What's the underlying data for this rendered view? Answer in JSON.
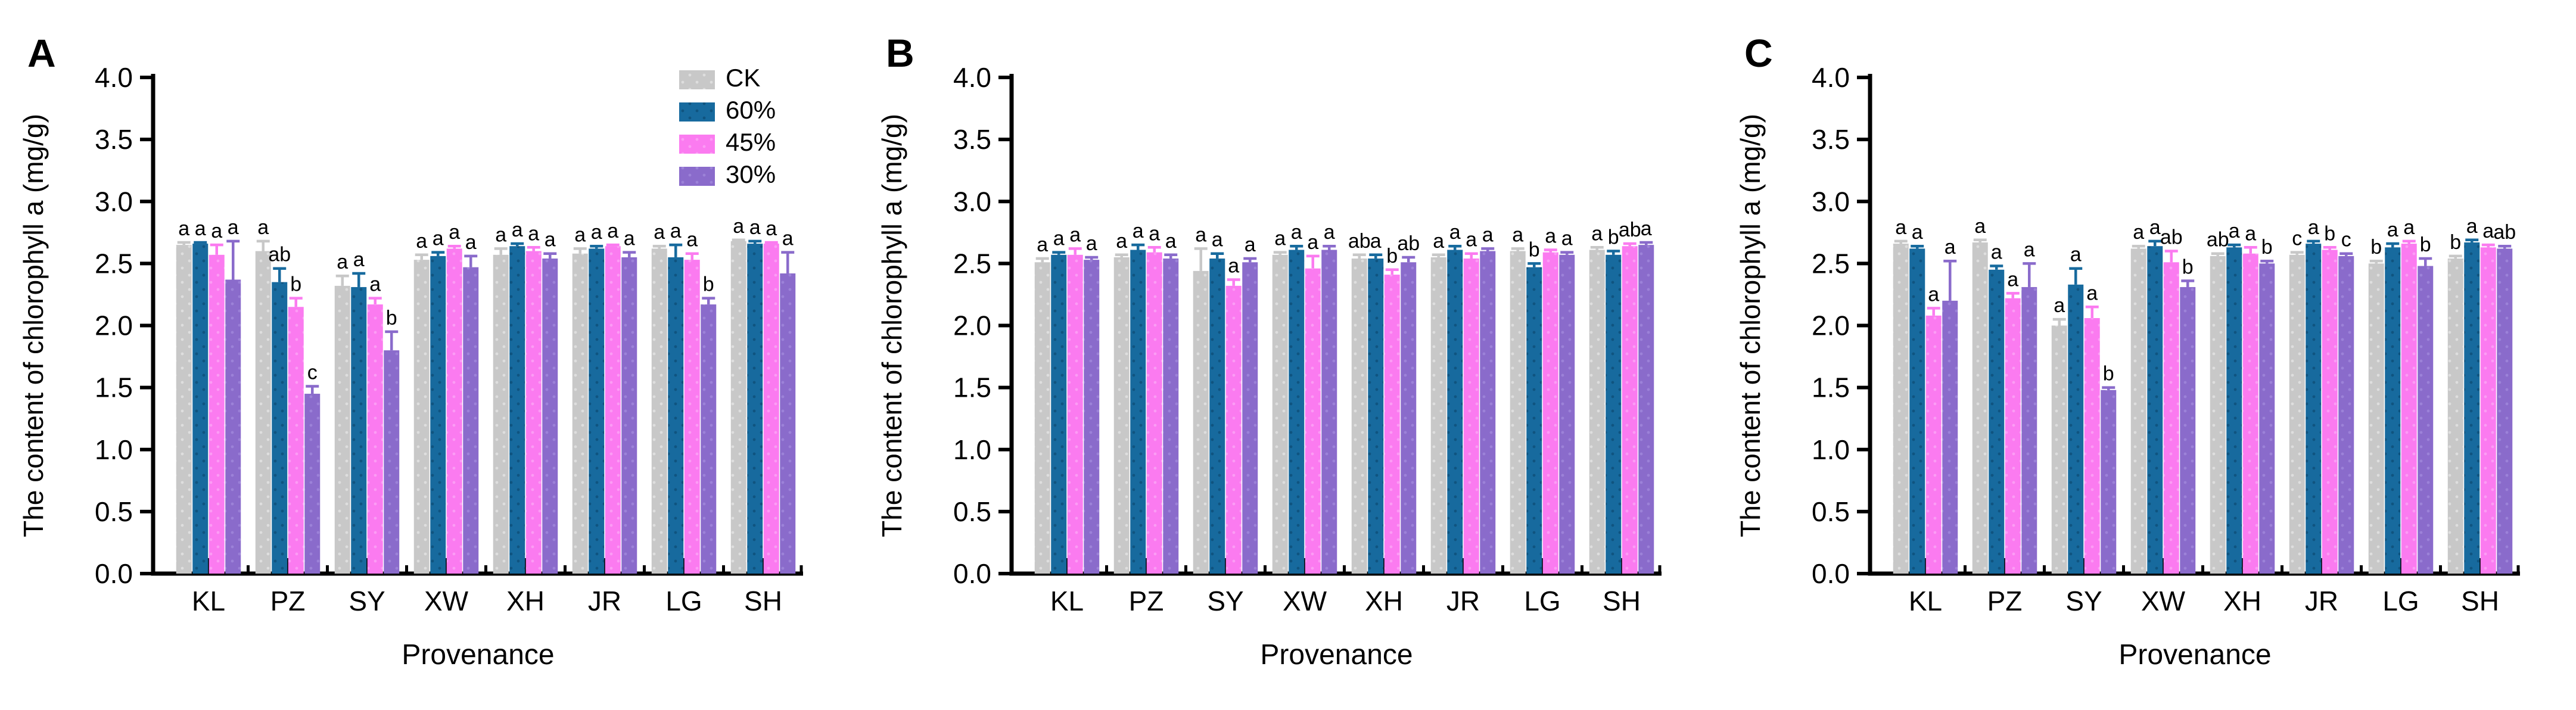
{
  "figure_title": "",
  "chart_data": [
    {
      "panel_label": "A",
      "type": "bar",
      "categories": [
        "KL",
        "PZ",
        "SY",
        "XW",
        "XH",
        "JR",
        "LG",
        "SH"
      ],
      "xlabel": "Provenance",
      "ylabel": "The content of chlorophyll a (mg/g)",
      "ylim": [
        0.0,
        4.0
      ],
      "yticks": [
        0.0,
        0.5,
        1.0,
        1.5,
        2.0,
        2.5,
        3.0,
        3.5,
        4.0
      ],
      "grid": false,
      "show_legend": true,
      "legend_position": "top-right",
      "series": [
        {
          "name": "CK",
          "color": "#c8c8c8",
          "dot_color": "#dedede",
          "values": [
            2.65,
            2.6,
            2.32,
            2.53,
            2.57,
            2.58,
            2.62,
            2.68
          ],
          "errors": [
            0.02,
            0.08,
            0.08,
            0.04,
            0.05,
            0.04,
            0.02,
            0.01
          ],
          "letters": [
            "a",
            "a",
            "a",
            "a",
            "a",
            "a",
            "a",
            "a"
          ]
        },
        {
          "name": "60%",
          "color": "#176a9e",
          "dot_color": "#0f5480",
          "values": [
            2.66,
            2.35,
            2.31,
            2.56,
            2.64,
            2.62,
            2.55,
            2.66
          ],
          "errors": [
            0.01,
            0.11,
            0.11,
            0.03,
            0.02,
            0.02,
            0.1,
            0.02
          ],
          "letters": [
            "a",
            "ab",
            "a",
            "a",
            "a",
            "a",
            "a",
            "a"
          ]
        },
        {
          "name": "45%",
          "color": "#fb7bf0",
          "dot_color": "#fc9cf5",
          "values": [
            2.57,
            2.15,
            2.17,
            2.62,
            2.6,
            2.64,
            2.53,
            2.66
          ],
          "errors": [
            0.08,
            0.07,
            0.05,
            0.02,
            0.03,
            0.01,
            0.05,
            0.01
          ],
          "letters": [
            "a",
            "b",
            "a",
            "a",
            "a",
            "a",
            "a",
            "a"
          ]
        },
        {
          "name": "30%",
          "color": "#8a6bcb",
          "dot_color": "#9c82d8",
          "values": [
            2.37,
            1.45,
            1.8,
            2.47,
            2.54,
            2.55,
            2.17,
            2.42
          ],
          "errors": [
            0.31,
            0.06,
            0.15,
            0.09,
            0.04,
            0.04,
            0.05,
            0.17
          ],
          "letters": [
            "a",
            "c",
            "b",
            "a",
            "a",
            "a",
            "b",
            "a"
          ]
        }
      ]
    },
    {
      "panel_label": "B",
      "type": "bar",
      "categories": [
        "KL",
        "PZ",
        "SY",
        "XW",
        "XH",
        "JR",
        "LG",
        "SH"
      ],
      "xlabel": "Provenance",
      "ylabel": "The content of chlorophyll a (mg/g)",
      "ylim": [
        0.0,
        4.0
      ],
      "yticks": [
        0.0,
        0.5,
        1.0,
        1.5,
        2.0,
        2.5,
        3.0,
        3.5,
        4.0
      ],
      "grid": false,
      "show_legend": false,
      "legend_position": "",
      "series": [
        {
          "name": "CK",
          "color": "#c8c8c8",
          "dot_color": "#dedede",
          "values": [
            2.51,
            2.55,
            2.44,
            2.57,
            2.54,
            2.55,
            2.6,
            2.61
          ],
          "errors": [
            0.03,
            0.02,
            0.18,
            0.02,
            0.03,
            0.02,
            0.02,
            0.02
          ],
          "letters": [
            "a",
            "a",
            "a",
            "a",
            "ab",
            "a",
            "a",
            "a"
          ]
        },
        {
          "name": "60%",
          "color": "#176a9e",
          "dot_color": "#0f5480",
          "values": [
            2.57,
            2.61,
            2.54,
            2.61,
            2.54,
            2.61,
            2.47,
            2.57
          ],
          "errors": [
            0.02,
            0.04,
            0.04,
            0.03,
            0.03,
            0.03,
            0.03,
            0.03
          ],
          "letters": [
            "a",
            "a",
            "a",
            "a",
            "a",
            "a",
            "b",
            "b"
          ]
        },
        {
          "name": "45%",
          "color": "#fb7bf0",
          "dot_color": "#fc9cf5",
          "values": [
            2.57,
            2.59,
            2.32,
            2.46,
            2.41,
            2.54,
            2.59,
            2.64
          ],
          "errors": [
            0.05,
            0.04,
            0.05,
            0.1,
            0.04,
            0.04,
            0.02,
            0.02
          ],
          "letters": [
            "a",
            "a",
            "a",
            "a",
            "b",
            "a",
            "a",
            "ab"
          ]
        },
        {
          "name": "30%",
          "color": "#8a6bcb",
          "dot_color": "#9c82d8",
          "values": [
            2.53,
            2.54,
            2.51,
            2.61,
            2.51,
            2.6,
            2.57,
            2.65
          ],
          "errors": [
            0.02,
            0.03,
            0.03,
            0.03,
            0.04,
            0.02,
            0.02,
            0.02
          ],
          "letters": [
            "a",
            "a",
            "a",
            "a",
            "ab",
            "a",
            "a",
            "a"
          ]
        }
      ]
    },
    {
      "panel_label": "C",
      "type": "bar",
      "categories": [
        "KL",
        "PZ",
        "SY",
        "XW",
        "XH",
        "JR",
        "LG",
        "SH"
      ],
      "xlabel": "Provenance",
      "ylabel": "The content of chlorophyll a (mg/g)",
      "ylim": [
        0.0,
        4.0
      ],
      "yticks": [
        0.0,
        0.5,
        1.0,
        1.5,
        2.0,
        2.5,
        3.0,
        3.5,
        4.0
      ],
      "grid": false,
      "show_legend": false,
      "legend_position": "",
      "series": [
        {
          "name": "CK",
          "color": "#c8c8c8",
          "dot_color": "#dedede",
          "values": [
            2.66,
            2.67,
            2.0,
            2.62,
            2.56,
            2.57,
            2.5,
            2.54
          ],
          "errors": [
            0.02,
            0.02,
            0.05,
            0.02,
            0.02,
            0.02,
            0.02,
            0.02
          ],
          "letters": [
            "a",
            "a",
            "a",
            "a",
            "ab",
            "c",
            "b",
            "b"
          ]
        },
        {
          "name": "60%",
          "color": "#176a9e",
          "dot_color": "#0f5480",
          "values": [
            2.62,
            2.45,
            2.33,
            2.64,
            2.63,
            2.66,
            2.63,
            2.67
          ],
          "errors": [
            0.02,
            0.03,
            0.13,
            0.04,
            0.02,
            0.02,
            0.03,
            0.02
          ],
          "letters": [
            "a",
            "a",
            "a",
            "a",
            "a",
            "a",
            "a",
            "a"
          ]
        },
        {
          "name": "45%",
          "color": "#fb7bf0",
          "dot_color": "#fc9cf5",
          "values": [
            2.08,
            2.22,
            2.06,
            2.51,
            2.58,
            2.61,
            2.66,
            2.63
          ],
          "errors": [
            0.06,
            0.04,
            0.09,
            0.09,
            0.05,
            0.02,
            0.02,
            0.02
          ],
          "letters": [
            "a",
            "a",
            "a",
            "ab",
            "a",
            "b",
            "a",
            "a"
          ]
        },
        {
          "name": "30%",
          "color": "#8a6bcb",
          "dot_color": "#9c82d8",
          "values": [
            2.2,
            2.31,
            1.48,
            2.31,
            2.5,
            2.56,
            2.48,
            2.62
          ],
          "errors": [
            0.32,
            0.19,
            0.02,
            0.05,
            0.02,
            0.02,
            0.06,
            0.02
          ],
          "letters": [
            "a",
            "a",
            "b",
            "b",
            "b",
            "c",
            "b",
            "ab"
          ]
        }
      ]
    }
  ]
}
